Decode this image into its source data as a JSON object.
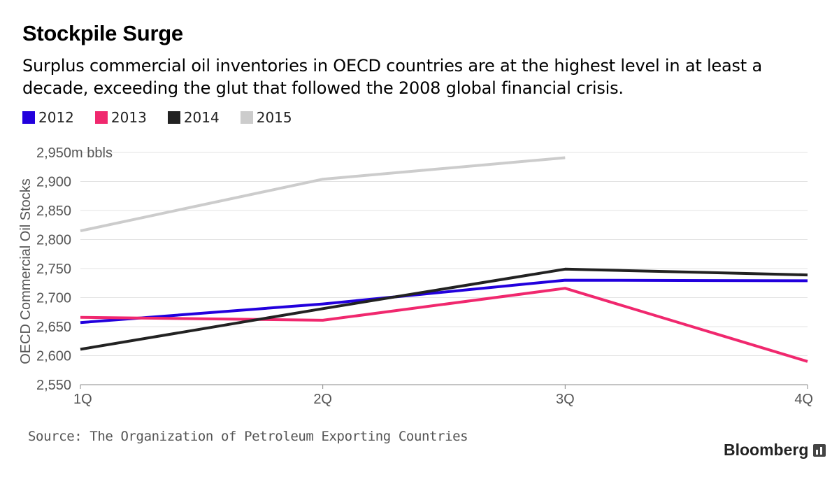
{
  "header": {
    "title": "Stockpile Surge",
    "subtitle": "Surplus commercial oil inventories in OECD countries are at the highest level in at least a decade, exceeding the glut that followed the 2008 global financial crisis."
  },
  "chart_data": {
    "type": "line",
    "categories": [
      "1Q",
      "2Q",
      "3Q",
      "4Q"
    ],
    "ylabel": "OECD Commercial Oil Stocks",
    "ylim": [
      2550,
      2950
    ],
    "yticks": [
      2550,
      2600,
      2650,
      2700,
      2750,
      2800,
      2850,
      2900,
      2950
    ],
    "ytick_labels": [
      "2,550",
      "2,600",
      "2,650",
      "2,700",
      "2,750",
      "2,800",
      "2,850",
      "2,900",
      "2,950m bbls"
    ],
    "grid": true,
    "legend": "top-left",
    "series": [
      {
        "name": "2012",
        "color": "#2200dd",
        "values": [
          2657,
          2689,
          2730,
          2729
        ]
      },
      {
        "name": "2013",
        "color": "#f0286e",
        "values": [
          2666,
          2661,
          2716,
          2590
        ]
      },
      {
        "name": "2014",
        "color": "#222222",
        "values": [
          2611,
          2681,
          2749,
          2739
        ]
      },
      {
        "name": "2015",
        "color": "#cccccc",
        "values": [
          2815,
          2904,
          2941,
          null
        ]
      }
    ]
  },
  "footer": {
    "source": "Source: The Organization of Petroleum Exporting Countries",
    "brand": "Bloomberg"
  }
}
